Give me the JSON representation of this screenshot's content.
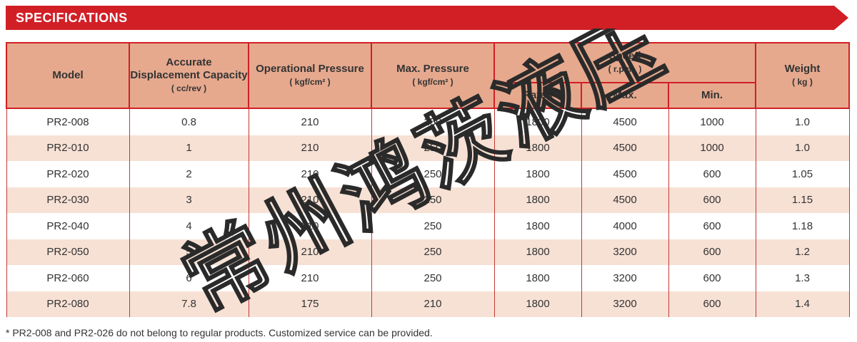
{
  "banner": {
    "title": "SPECIFICATIONS"
  },
  "headers": {
    "model": "Model",
    "capacity": "Accurate Displacement Capacity",
    "capacity_unit": "( cc/rev )",
    "op_pressure": "Operational Pressure",
    "op_pressure_unit": "( kgf/cm² )",
    "max_pressure": "Max. Pressure",
    "max_pressure_unit": "( kgf/cm² )",
    "speed": "Speed",
    "speed_unit": "( r.p.m. )",
    "speed_rated": "Rated",
    "speed_max": "Max.",
    "speed_min": "Min.",
    "weight": "Weight",
    "weight_unit": "( kg )"
  },
  "rows": [
    [
      "PR2-008",
      "0.8",
      "210",
      "250",
      "1800",
      "4500",
      "1000",
      "1.0"
    ],
    [
      "PR2-010",
      "1",
      "210",
      "250",
      "1800",
      "4500",
      "1000",
      "1.0"
    ],
    [
      "PR2-020",
      "2",
      "210",
      "250",
      "1800",
      "4500",
      "600",
      "1.05"
    ],
    [
      "PR2-030",
      "3",
      "210",
      "250",
      "1800",
      "4500",
      "600",
      "1.15"
    ],
    [
      "PR2-040",
      "4",
      "210",
      "250",
      "1800",
      "4000",
      "600",
      "1.18"
    ],
    [
      "PR2-050",
      "5",
      "210",
      "250",
      "1800",
      "3200",
      "600",
      "1.2"
    ],
    [
      "PR2-060",
      "6",
      "210",
      "250",
      "1800",
      "3200",
      "600",
      "1.3"
    ],
    [
      "PR2-080",
      "7.8",
      "175",
      "210",
      "1800",
      "3200",
      "600",
      "1.4"
    ]
  ],
  "footnote": "* PR2-008 and PR2-026 do not belong to regular products. Customized service can be provided.",
  "watermark": {
    "text": "常州鸿茨液压"
  },
  "colors": {
    "brand_red": "#d21f26",
    "header_fill": "#e6a98e",
    "row_stripe": "#f7e1d5"
  }
}
